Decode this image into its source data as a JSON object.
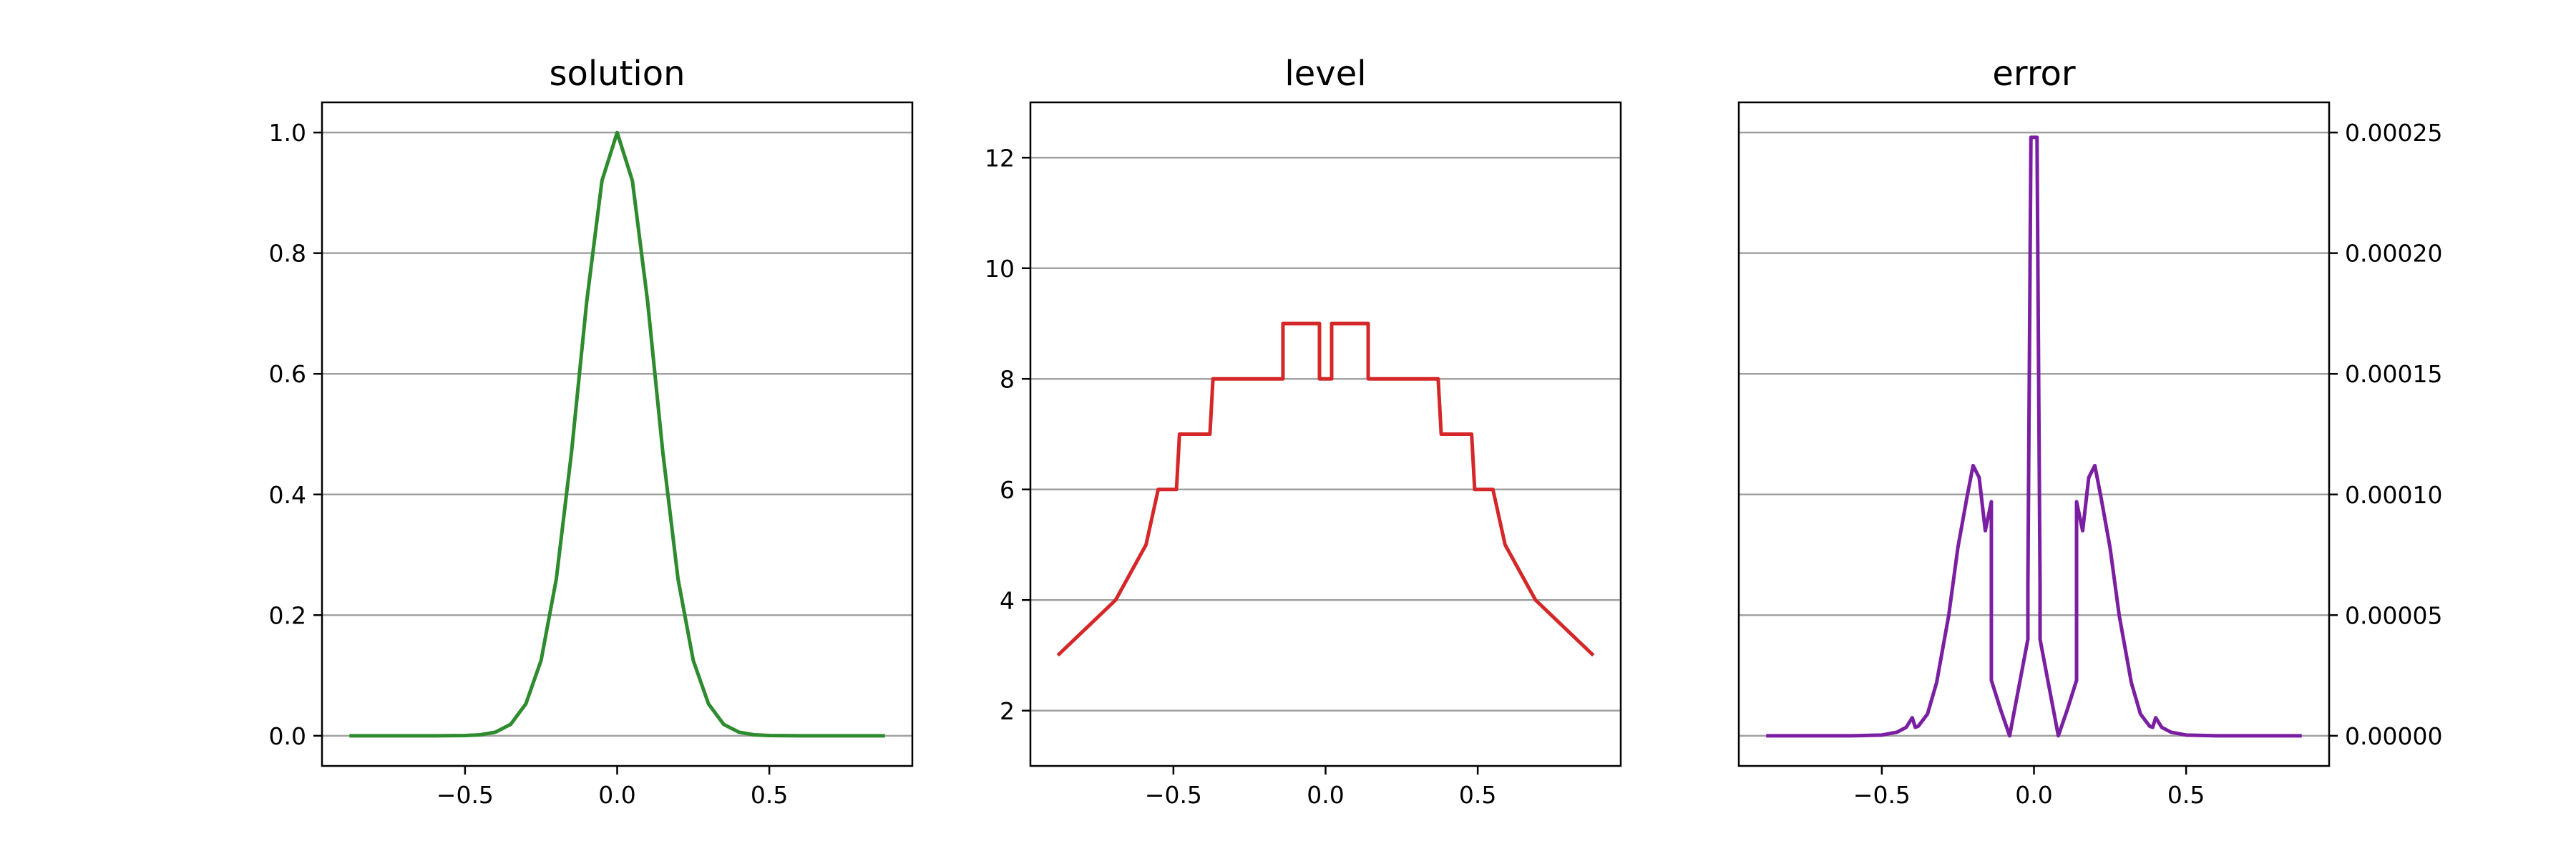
{
  "chart_data": [
    {
      "type": "line",
      "title": "solution",
      "xlabel": "",
      "ylabel": "",
      "xlim": [
        -0.97,
        0.97
      ],
      "ylim": [
        -0.05,
        1.05
      ],
      "xticks": [
        -0.5,
        0.0,
        0.5
      ],
      "xtick_labels": [
        "−0.5",
        "0.0",
        "0.5"
      ],
      "yticks": [
        0.0,
        0.2,
        0.4,
        0.6,
        0.8,
        1.0
      ],
      "ytick_labels": [
        "0.0",
        "0.2",
        "0.4",
        "0.6",
        "0.8",
        "1.0"
      ],
      "y_axis_side": "left",
      "grid": "horizontal",
      "color": "#2e8b2e",
      "series": [
        {
          "x": [
            -0.88,
            -0.6,
            -0.5,
            -0.45,
            -0.4,
            -0.35,
            -0.3,
            -0.25,
            -0.2,
            -0.15,
            -0.1,
            -0.05,
            0.0,
            0.05,
            0.1,
            0.15,
            0.2,
            0.25,
            0.3,
            0.35,
            0.4,
            0.45,
            0.5,
            0.6,
            0.88
          ],
          "y": [
            0.0,
            0.0,
            0.0004,
            0.0016,
            0.006,
            0.019,
            0.053,
            0.125,
            0.26,
            0.47,
            0.72,
            0.92,
            1.0,
            0.92,
            0.72,
            0.47,
            0.26,
            0.125,
            0.053,
            0.019,
            0.006,
            0.0016,
            0.0004,
            0.0,
            0.0
          ]
        }
      ]
    },
    {
      "type": "line",
      "title": "level",
      "xlabel": "",
      "ylabel": "",
      "xlim": [
        -0.97,
        0.97
      ],
      "ylim": [
        1,
        13
      ],
      "xticks": [
        -0.5,
        0.0,
        0.5
      ],
      "xtick_labels": [
        "−0.5",
        "0.0",
        "0.5"
      ],
      "yticks": [
        2,
        4,
        6,
        8,
        10,
        12
      ],
      "ytick_labels": [
        "2",
        "4",
        "6",
        "8",
        "10",
        "12"
      ],
      "y_axis_side": "left",
      "grid": "horizontal",
      "color": "#d62728",
      "series": [
        {
          "x": [
            -0.88,
            -0.69,
            -0.59,
            -0.55,
            -0.49,
            -0.48,
            -0.38,
            -0.37,
            -0.14,
            -0.14,
            -0.02,
            -0.02,
            0.02,
            0.02,
            0.14,
            0.14,
            0.37,
            0.38,
            0.48,
            0.49,
            0.55,
            0.59,
            0.69,
            0.88
          ],
          "y": [
            3,
            4,
            5,
            6,
            6,
            7,
            7,
            8,
            8,
            9,
            9,
            8,
            8,
            9,
            9,
            8,
            8,
            7,
            7,
            6,
            6,
            5,
            4,
            3
          ]
        }
      ]
    },
    {
      "type": "line",
      "title": "error",
      "xlabel": "",
      "ylabel": "",
      "xlim": [
        -0.97,
        0.97
      ],
      "ylim": [
        -1.25e-05,
        0.0002625
      ],
      "xticks": [
        -0.5,
        0.0,
        0.5
      ],
      "xtick_labels": [
        "−0.5",
        "0.0",
        "0.5"
      ],
      "yticks": [
        0.0,
        5e-05,
        0.0001,
        0.00015,
        0.0002,
        0.00025
      ],
      "ytick_labels": [
        "0.00000",
        "0.00005",
        "0.00010",
        "0.00015",
        "0.00020",
        "0.00025"
      ],
      "y_axis_side": "right",
      "grid": "horizontal",
      "color": "#7b1fa2",
      "series": [
        {
          "x": [
            -0.88,
            -0.6,
            -0.5,
            -0.45,
            -0.42,
            -0.4,
            -0.39,
            -0.38,
            -0.35,
            -0.32,
            -0.28,
            -0.25,
            -0.22,
            -0.2,
            -0.18,
            -0.16,
            -0.14,
            -0.14,
            -0.11,
            -0.08,
            -0.05,
            -0.02,
            -0.02,
            -0.01,
            0.0,
            0.01,
            0.02,
            0.02,
            0.05,
            0.08,
            0.11,
            0.14,
            0.14,
            0.16,
            0.18,
            0.2,
            0.22,
            0.25,
            0.28,
            0.32,
            0.35,
            0.38,
            0.39,
            0.4,
            0.42,
            0.45,
            0.5,
            0.6,
            0.88
          ],
          "y": [
            0.0,
            0.0,
            3e-07,
            1.5e-06,
            3.5e-06,
            7.5e-06,
            3.5e-06,
            4e-06,
            9e-06,
            2.2e-05,
            5e-05,
            7.8e-05,
            9.9e-05,
            0.000112,
            0.000107,
            8.5e-05,
            9.7e-05,
            2.3e-05,
            1.1e-05,
            0.0,
            2e-05,
            4e-05,
            6.2e-05,
            0.000248,
            0.000248,
            0.000248,
            6.2e-05,
            4e-05,
            2e-05,
            0.0,
            1.1e-05,
            2.3e-05,
            9.7e-05,
            8.5e-05,
            0.000107,
            0.000112,
            9.9e-05,
            7.8e-05,
            5e-05,
            2.2e-05,
            9e-06,
            4e-06,
            3.5e-06,
            7.5e-06,
            3.5e-06,
            1.5e-06,
            3e-07,
            0.0,
            0.0
          ]
        }
      ]
    }
  ]
}
